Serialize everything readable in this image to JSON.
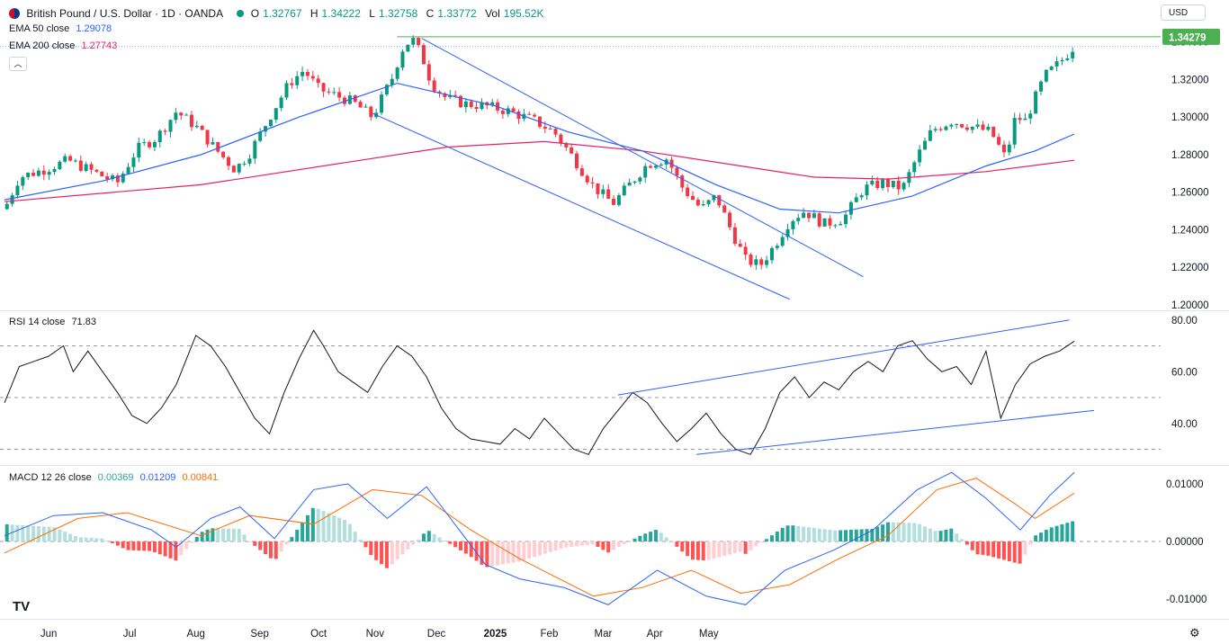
{
  "header": {
    "symbol": "British Pound / U.S. Dollar · 1D · OANDA",
    "o_label": "O",
    "o_value": "1.32767",
    "h_label": "H",
    "h_value": "1.34222",
    "l_label": "L",
    "l_value": "1.32758",
    "c_label": "C",
    "c_value": "1.33772",
    "vol_label": "Vol",
    "vol_value": "195.52K",
    "currency_button": "USD"
  },
  "indicators": {
    "ema50": {
      "label": "EMA 50 close",
      "value": "1.29078",
      "color": "#2962ff"
    },
    "ema200": {
      "label": "EMA 200 close",
      "value": "1.27743",
      "color": "#e91e63"
    },
    "rsi": {
      "label": "RSI 14 close",
      "value": "71.83"
    },
    "macd": {
      "label": "MACD 12 26 close",
      "hist": "0.00369",
      "macd": "0.01209",
      "signal": "0.00841",
      "hist_color": "#26a69a",
      "macd_color": "#2962ff",
      "signal_color": "#ff6d00"
    }
  },
  "colors": {
    "up": "#089981",
    "down": "#f23645",
    "trendline": "#2962ff",
    "resistance": "#4caf50"
  },
  "chart_data": [
    {
      "type": "candlestick",
      "title": "British Pound / U.S. Dollar · 1D · OANDA",
      "y_ticks": [
        "1.20000",
        "1.22000",
        "1.24000",
        "1.26000",
        "1.28000",
        "1.30000",
        "1.32000",
        "1.34000"
      ],
      "ylim": [
        1.2,
        1.348
      ],
      "x_ticks": [
        "Jun",
        "Jul",
        "Aug",
        "Sep",
        "Oct",
        "Nov",
        "Dec",
        "2025",
        "Feb",
        "Mar",
        "Apr",
        "May"
      ],
      "last_price_label": "1.34279",
      "resistance_level": 1.3428,
      "ohlc_path_closes": [
        [
          0,
          1.251
        ],
        [
          6,
          1.268
        ],
        [
          16,
          1.272
        ],
        [
          26,
          1.277
        ],
        [
          36,
          1.271
        ],
        [
          46,
          1.265
        ],
        [
          54,
          1.283
        ],
        [
          62,
          1.289
        ],
        [
          70,
          1.303
        ],
        [
          78,
          1.295
        ],
        [
          86,
          1.283
        ],
        [
          94,
          1.272
        ],
        [
          100,
          1.281
        ],
        [
          108,
          1.3
        ],
        [
          116,
          1.318
        ],
        [
          122,
          1.325
        ],
        [
          128,
          1.315
        ],
        [
          134,
          1.312
        ],
        [
          142,
          1.308
        ],
        [
          150,
          1.3
        ],
        [
          158,
          1.321
        ],
        [
          162,
          1.336
        ],
        [
          166,
          1.342
        ],
        [
          170,
          1.333
        ],
        [
          174,
          1.318
        ],
        [
          180,
          1.31
        ],
        [
          188,
          1.307
        ],
        [
          196,
          1.306
        ],
        [
          206,
          1.303
        ],
        [
          216,
          1.298
        ],
        [
          224,
          1.292
        ],
        [
          232,
          1.278
        ],
        [
          240,
          1.263
        ],
        [
          248,
          1.254
        ],
        [
          256,
          1.266
        ],
        [
          262,
          1.275
        ],
        [
          270,
          1.278
        ],
        [
          276,
          1.263
        ],
        [
          284,
          1.251
        ],
        [
          290,
          1.258
        ],
        [
          296,
          1.24
        ],
        [
          302,
          1.224
        ],
        [
          308,
          1.221
        ],
        [
          314,
          1.232
        ],
        [
          320,
          1.245
        ],
        [
          326,
          1.25
        ],
        [
          334,
          1.243
        ],
        [
          342,
          1.246
        ],
        [
          350,
          1.262
        ],
        [
          358,
          1.265
        ],
        [
          366,
          1.262
        ],
        [
          372,
          1.279
        ],
        [
          378,
          1.293
        ],
        [
          386,
          1.298
        ],
        [
          394,
          1.295
        ],
        [
          402,
          1.292
        ],
        [
          408,
          1.278
        ],
        [
          412,
          1.3
        ],
        [
          416,
          1.298
        ],
        [
          420,
          1.31
        ],
        [
          424,
          1.322
        ],
        [
          430,
          1.329
        ],
        [
          436,
          1.338
        ]
      ],
      "ema50": [
        [
          0,
          1.256
        ],
        [
          40,
          1.266
        ],
        [
          80,
          1.28
        ],
        [
          120,
          1.3
        ],
        [
          160,
          1.318
        ],
        [
          180,
          1.312
        ],
        [
          200,
          1.306
        ],
        [
          230,
          1.292
        ],
        [
          260,
          1.282
        ],
        [
          290,
          1.264
        ],
        [
          316,
          1.251
        ],
        [
          340,
          1.249
        ],
        [
          370,
          1.258
        ],
        [
          400,
          1.274
        ],
        [
          420,
          1.282
        ],
        [
          436,
          1.291
        ]
      ],
      "ema200": [
        [
          0,
          1.255
        ],
        [
          80,
          1.264
        ],
        [
          140,
          1.276
        ],
        [
          180,
          1.284
        ],
        [
          220,
          1.287
        ],
        [
          260,
          1.282
        ],
        [
          300,
          1.274
        ],
        [
          330,
          1.268
        ],
        [
          360,
          1.267
        ],
        [
          400,
          1.271
        ],
        [
          436,
          1.277
        ]
      ]
    },
    {
      "type": "line",
      "name": "RSI 14 close",
      "y_ticks": [
        "40.00",
        "60.00",
        "80.00"
      ],
      "ylim": [
        26,
        82
      ],
      "levels": [
        30,
        50,
        70
      ],
      "values": [
        [
          0,
          48
        ],
        [
          6,
          62
        ],
        [
          12,
          64
        ],
        [
          18,
          66
        ],
        [
          24,
          70
        ],
        [
          28,
          60
        ],
        [
          34,
          68
        ],
        [
          40,
          60
        ],
        [
          46,
          52
        ],
        [
          52,
          43
        ],
        [
          58,
          40
        ],
        [
          64,
          46
        ],
        [
          70,
          55
        ],
        [
          78,
          74
        ],
        [
          84,
          70
        ],
        [
          90,
          62
        ],
        [
          96,
          52
        ],
        [
          102,
          42
        ],
        [
          108,
          36
        ],
        [
          114,
          52
        ],
        [
          120,
          65
        ],
        [
          126,
          76
        ],
        [
          130,
          70
        ],
        [
          136,
          60
        ],
        [
          142,
          56
        ],
        [
          148,
          52
        ],
        [
          154,
          62
        ],
        [
          160,
          70
        ],
        [
          166,
          66
        ],
        [
          172,
          58
        ],
        [
          178,
          46
        ],
        [
          184,
          38
        ],
        [
          190,
          34
        ],
        [
          196,
          33
        ],
        [
          202,
          32
        ],
        [
          208,
          38
        ],
        [
          214,
          34
        ],
        [
          220,
          42
        ],
        [
          226,
          36
        ],
        [
          232,
          30
        ],
        [
          238,
          28
        ],
        [
          244,
          38
        ],
        [
          250,
          45
        ],
        [
          256,
          52
        ],
        [
          262,
          48
        ],
        [
          268,
          40
        ],
        [
          274,
          33
        ],
        [
          280,
          38
        ],
        [
          286,
          44
        ],
        [
          292,
          36
        ],
        [
          298,
          30
        ],
        [
          304,
          28
        ],
        [
          310,
          38
        ],
        [
          316,
          52
        ],
        [
          322,
          58
        ],
        [
          328,
          50
        ],
        [
          334,
          56
        ],
        [
          340,
          53
        ],
        [
          346,
          60
        ],
        [
          352,
          64
        ],
        [
          358,
          60
        ],
        [
          364,
          70
        ],
        [
          370,
          72
        ],
        [
          376,
          65
        ],
        [
          382,
          60
        ],
        [
          388,
          62
        ],
        [
          394,
          55
        ],
        [
          400,
          68
        ],
        [
          406,
          42
        ],
        [
          412,
          55
        ],
        [
          418,
          63
        ],
        [
          424,
          66
        ],
        [
          430,
          68
        ],
        [
          436,
          71.8
        ]
      ],
      "trendlines": [
        [
          [
            250,
            51
          ],
          [
            434,
            80
          ]
        ],
        [
          [
            282,
            28
          ],
          [
            444,
            45
          ]
        ]
      ]
    },
    {
      "type": "bar+line",
      "name": "MACD 12 26 close",
      "y_ticks": [
        "-0.01000",
        "0.00000",
        "0.01000"
      ],
      "ylim": [
        -0.0125,
        0.0125
      ],
      "macd": [
        [
          0,
          0.001
        ],
        [
          20,
          0.0045
        ],
        [
          40,
          0.005
        ],
        [
          60,
          0.002
        ],
        [
          70,
          -0.001
        ],
        [
          84,
          0.004
        ],
        [
          96,
          0.006
        ],
        [
          110,
          0.0005
        ],
        [
          126,
          0.009
        ],
        [
          140,
          0.01
        ],
        [
          156,
          0.004
        ],
        [
          172,
          0.0095
        ],
        [
          180,
          0.005
        ],
        [
          196,
          -0.004
        ],
        [
          210,
          -0.0065
        ],
        [
          228,
          -0.008
        ],
        [
          246,
          -0.011
        ],
        [
          266,
          -0.005
        ],
        [
          286,
          -0.0095
        ],
        [
          302,
          -0.011
        ],
        [
          318,
          -0.005
        ],
        [
          338,
          -0.0015
        ],
        [
          354,
          0.002
        ],
        [
          372,
          0.009
        ],
        [
          386,
          0.012
        ],
        [
          400,
          0.0075
        ],
        [
          414,
          0.002
        ],
        [
          426,
          0.008
        ],
        [
          436,
          0.012
        ]
      ],
      "signal": [
        [
          0,
          -0.002
        ],
        [
          30,
          0.004
        ],
        [
          50,
          0.005
        ],
        [
          80,
          0.001
        ],
        [
          100,
          0.0045
        ],
        [
          126,
          0.003
        ],
        [
          150,
          0.009
        ],
        [
          170,
          0.008
        ],
        [
          190,
          0.002
        ],
        [
          210,
          -0.003
        ],
        [
          240,
          -0.0095
        ],
        [
          260,
          -0.008
        ],
        [
          280,
          -0.005
        ],
        [
          300,
          -0.009
        ],
        [
          320,
          -0.0075
        ],
        [
          340,
          -0.003
        ],
        [
          360,
          0.001
        ],
        [
          380,
          0.009
        ],
        [
          396,
          0.011
        ],
        [
          412,
          0.0065
        ],
        [
          420,
          0.004
        ],
        [
          436,
          0.0084
        ]
      ],
      "histogram_last": 0.00369
    }
  ]
}
